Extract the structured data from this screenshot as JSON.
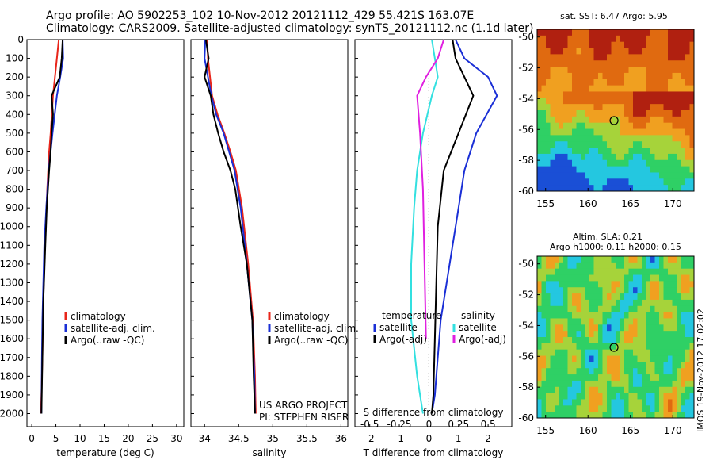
{
  "header": {
    "line1": "Argo profile: AO 5902253_102 10-Nov-2012 20121112_429 55.421S 163.07E",
    "line2": "Climatology: CARS2009. Satellite-adjusted climatology: synTS_20121112.nc (1.1d later)"
  },
  "colors": {
    "climatology": "#e8251a",
    "satellite": "#1a2fd6",
    "argo": "#000000",
    "satellite_s": "#33e0e0",
    "argo_s": "#e020e0"
  },
  "chart_data": [
    {
      "type": "line",
      "name": "temperature-profile",
      "xlabel": "temperature (deg C)",
      "ylabel": "",
      "xlim": [
        -1,
        31.5
      ],
      "ylim": [
        2070,
        0
      ],
      "xticks": [
        0,
        5,
        10,
        15,
        20,
        25,
        30
      ],
      "yticks": [
        0,
        100,
        200,
        300,
        400,
        500,
        600,
        700,
        800,
        900,
        1000,
        1100,
        1200,
        1300,
        1400,
        1500,
        1600,
        1700,
        1800,
        1900,
        2000
      ],
      "legend": [
        "climatology",
        "satellite-adj. clim.",
        "Argo(..raw -QC)"
      ],
      "series": [
        {
          "name": "climatology",
          "x": [
            5.6,
            5.2,
            4.4,
            3.9,
            3.6,
            3.4,
            3.2,
            2.9,
            2.6,
            2.3,
            2.2,
            2.0,
            1.9
          ],
          "y": [
            0,
            100,
            300,
            500,
            600,
            700,
            800,
            1000,
            1200,
            1500,
            1700,
            1900,
            2000
          ]
        },
        {
          "name": "satellite-adj. clim.",
          "x": [
            6.4,
            6.5,
            5.9,
            5.2,
            4.3,
            3.5,
            3.0,
            2.6,
            2.2,
            2.1,
            2.0
          ],
          "y": [
            0,
            100,
            200,
            300,
            500,
            700,
            900,
            1100,
            1500,
            1700,
            2000
          ]
        },
        {
          "name": "Argo(..raw -QC)",
          "x": [
            6.4,
            6.2,
            5.8,
            4.1,
            4.4,
            4.1,
            3.9,
            3.6,
            3.1,
            2.8,
            2.4,
            2.2,
            2.0
          ],
          "y": [
            0,
            100,
            200,
            300,
            400,
            500,
            600,
            700,
            900,
            1100,
            1400,
            1700,
            2000
          ]
        }
      ]
    },
    {
      "type": "line",
      "name": "salinity-profile",
      "xlabel": "salinity",
      "ylabel": "",
      "xlim": [
        33.8,
        36.1
      ],
      "ylim": [
        2070,
        0
      ],
      "xticks": [
        34,
        34.5,
        35,
        35.5,
        36
      ],
      "legend": [
        "climatology",
        "satellite-adj. clim.",
        "Argo(..raw -QC)"
      ],
      "annotations": [
        "US ARGO PROJECT",
        "PI: STEPHEN RISER"
      ],
      "series": [
        {
          "name": "climatology",
          "x": [
            34.04,
            34.05,
            34.08,
            34.11,
            34.19,
            34.29,
            34.38,
            34.46,
            34.55,
            34.64,
            34.71,
            34.74,
            34.75
          ],
          "y": [
            0,
            100,
            200,
            300,
            400,
            500,
            600,
            700,
            900,
            1200,
            1500,
            1800,
            2000
          ]
        },
        {
          "name": "satellite-adj. clim.",
          "x": [
            34.01,
            34.0,
            34.05,
            34.1,
            34.17,
            34.28,
            34.36,
            34.44,
            34.53,
            34.62,
            34.7,
            34.73,
            34.74
          ],
          "y": [
            0,
            100,
            200,
            300,
            400,
            500,
            600,
            700,
            900,
            1200,
            1500,
            1800,
            2000
          ]
        },
        {
          "name": "Argo(..raw -QC)",
          "x": [
            34.02,
            34.06,
            34.0,
            34.09,
            34.13,
            34.2,
            34.28,
            34.38,
            34.45,
            34.53,
            34.62,
            34.7,
            34.72,
            34.74
          ],
          "y": [
            0,
            100,
            200,
            300,
            400,
            500,
            600,
            700,
            800,
            1000,
            1200,
            1500,
            1800,
            2000
          ]
        }
      ]
    },
    {
      "type": "line",
      "name": "difference-profile",
      "xlabel": "T difference from climatology",
      "ylabel": "",
      "xlim": [
        -2.5,
        2.8
      ],
      "ylim": [
        2070,
        0
      ],
      "xticks": [
        -2,
        -1,
        0,
        1,
        2
      ],
      "top_axis_label": "S difference from climatology",
      "top_xticks": [
        "-0.5",
        "-0.25",
        "0",
        "0.25",
        "0.5"
      ],
      "legend_groups": [
        {
          "title": "temperature",
          "items": [
            "satellite",
            "Argo(-adj)"
          ]
        },
        {
          "title": "salinity",
          "items": [
            "satellite",
            "Argo(-adj)"
          ]
        }
      ],
      "series": [
        {
          "name": "temperature satellite",
          "x": [
            0.9,
            1.2,
            2.0,
            2.3,
            1.6,
            1.2,
            1.0,
            0.8,
            0.6,
            0.4,
            0.3,
            0.2,
            0.1
          ],
          "y": [
            0,
            100,
            200,
            300,
            500,
            700,
            900,
            1100,
            1300,
            1500,
            1700,
            1900,
            2000
          ]
        },
        {
          "name": "temperature Argo(-adj)",
          "x": [
            0.8,
            0.9,
            1.2,
            1.5,
            1.0,
            0.5,
            0.3,
            0.25,
            0.2,
            0.15,
            0.1
          ],
          "y": [
            0,
            100,
            200,
            300,
            500,
            700,
            1000,
            1300,
            1600,
            1900,
            2000
          ]
        },
        {
          "name": "salinity satellite",
          "x": [
            0.1,
            0.2,
            0.3,
            0.1,
            -0.2,
            -0.4,
            -0.5,
            -0.6,
            -0.6,
            -0.4,
            -0.2
          ],
          "y": [
            0,
            100,
            200,
            300,
            500,
            700,
            900,
            1200,
            1500,
            1800,
            2000
          ]
        },
        {
          "name": "salinity Argo(-adj)",
          "x": [
            0.5,
            0.3,
            -0.1,
            -0.4,
            -0.3,
            -0.2,
            -0.15,
            -0.1
          ],
          "y": [
            0,
            100,
            200,
            300,
            500,
            800,
            1200,
            1600
          ]
        }
      ]
    },
    {
      "type": "heatmap",
      "name": "sst-map",
      "title": "sat. SST: 6.47 Argo: 5.95",
      "xlim": [
        154,
        172.5
      ],
      "ylim": [
        -60,
        -49.5
      ],
      "xticks": [
        155,
        160,
        165,
        170
      ],
      "yticks": [
        -50,
        -52,
        -54,
        -56,
        -58,
        -60
      ],
      "marker": {
        "lon": 163.07,
        "lat": -55.42
      }
    },
    {
      "type": "heatmap",
      "name": "sla-map",
      "title": "Altim. SLA: 0.21",
      "subtitle": "Argo h1000: 0.11 h2000: 0.15",
      "xlim": [
        154,
        172.5
      ],
      "ylim": [
        -60,
        -49.5
      ],
      "xticks": [
        155,
        160,
        165,
        170
      ],
      "yticks": [
        -50,
        -52,
        -54,
        -56,
        -58,
        -60
      ],
      "marker": {
        "lon": 163.07,
        "lat": -55.42
      }
    }
  ],
  "side_stamp": "IMOS 19-Nov-2012 17:02:02"
}
